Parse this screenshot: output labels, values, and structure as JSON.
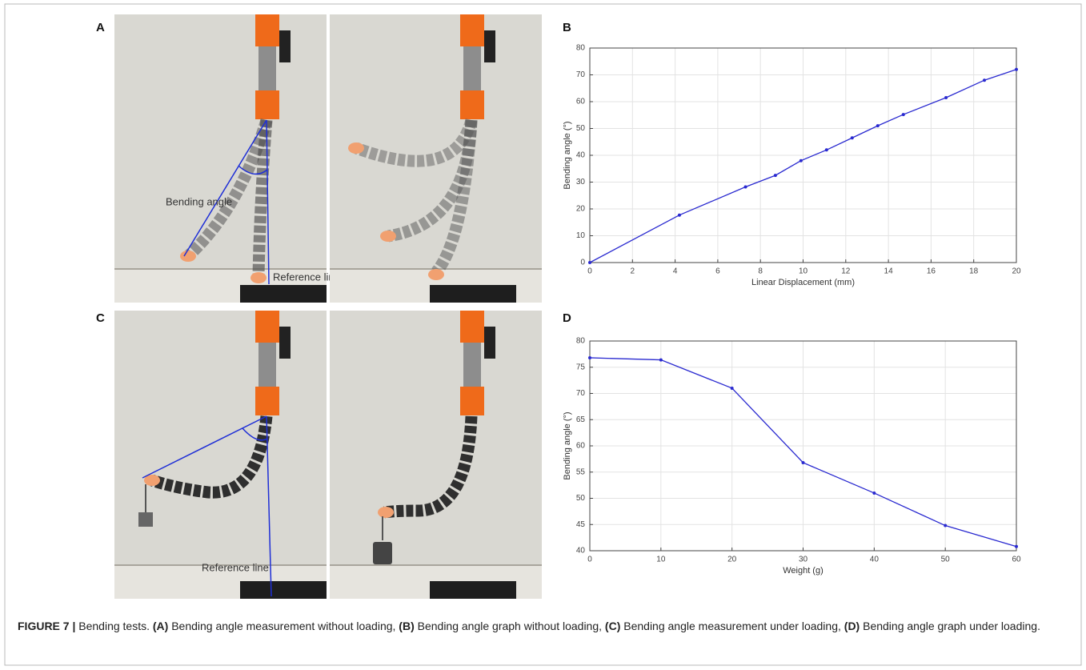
{
  "panel_labels": [
    "A",
    "B",
    "C",
    "D"
  ],
  "photo_labels": {
    "bending_angle": "Bending angle",
    "reference_line_a": "Reference line",
    "reference_line_c": "Reference line"
  },
  "chart_data": [
    {
      "type": "line",
      "x": [
        0,
        4.2,
        7.3,
        8.7,
        9.9,
        11.1,
        12.3,
        13.5,
        14.7,
        16.7,
        18.5,
        20
      ],
      "values": [
        0,
        17.7,
        28.2,
        32.5,
        38,
        42,
        46.5,
        51,
        55.2,
        61.5,
        68,
        72
      ],
      "color": "#2a2ad0",
      "xlabel": "Linear Displacement (mm)",
      "ylabel": "Bending angle (°)",
      "xlim": [
        0,
        20
      ],
      "xticks": [
        0,
        2,
        4,
        6,
        8,
        10,
        12,
        14,
        16,
        18,
        20
      ],
      "ylim": [
        0,
        80
      ],
      "yticks": [
        0,
        10,
        20,
        30,
        40,
        50,
        60,
        70,
        80
      ],
      "grid": true
    },
    {
      "type": "line",
      "x": [
        0,
        10,
        20,
        30,
        40,
        50,
        60
      ],
      "values": [
        76.8,
        76.4,
        71,
        56.8,
        51,
        44.8,
        40.8
      ],
      "color": "#2a2ad0",
      "xlabel": "Weight (g)",
      "ylabel": "Bending angle (°)",
      "xlim": [
        0,
        60
      ],
      "xticks": [
        0,
        10,
        20,
        30,
        40,
        50,
        60
      ],
      "ylim": [
        40,
        80
      ],
      "yticks": [
        40,
        45,
        50,
        55,
        60,
        65,
        70,
        75,
        80
      ],
      "grid": true
    }
  ],
  "caption": [
    {
      "text": "FIGURE 7 |",
      "bold": true
    },
    {
      "text": "Bending tests.",
      "bold": false
    },
    {
      "text": "(A)",
      "bold": true
    },
    {
      "text": "Bending angle measurement without loading,",
      "bold": false
    },
    {
      "text": "(B)",
      "bold": true
    },
    {
      "text": "Bending angle graph without loading,",
      "bold": false
    },
    {
      "text": "(C)",
      "bold": true
    },
    {
      "text": "Bending angle measurement under loading,",
      "bold": false
    },
    {
      "text": "(D)",
      "bold": true
    },
    {
      "text": "Bending angle graph under loading.",
      "bold": false
    }
  ]
}
